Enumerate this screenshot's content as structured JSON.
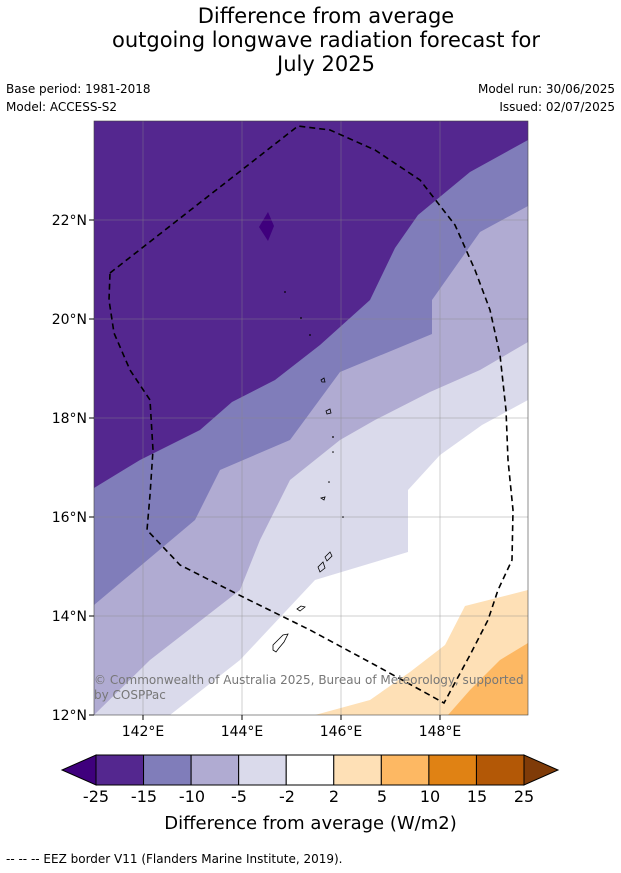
{
  "header": {
    "title_lines": [
      "Difference from average",
      "outgoing longwave radiation forecast for",
      "July 2025"
    ],
    "base_period": "Base period: 1981-2018",
    "model": "Model: ACCESS-S2",
    "model_run": "Model run: 30/06/2025",
    "issued": "Issued: 02/07/2025"
  },
  "map": {
    "lat_labels": [
      "22°N",
      "20°N",
      "18°N",
      "16°N",
      "14°N",
      "12°N"
    ],
    "lon_labels": [
      "142°E",
      "144°E",
      "146°E",
      "148°E"
    ],
    "copyright_lines": [
      "© Commonwealth of Australia 2025, Bureau of Meteorology, supported",
      "by COSPPac"
    ],
    "eez_border_style": "dashed black"
  },
  "colorbar": {
    "ticks": [
      "-25",
      "-15",
      "-10",
      "-5",
      "-2",
      "2",
      "5",
      "10",
      "15",
      "25"
    ],
    "colors": [
      "#3f007d",
      "#54278f",
      "#807dba",
      "#b0abd2",
      "#dadaeb",
      "#ffffff",
      "#fee0b6",
      "#fdb863",
      "#e08214",
      "#b35806",
      "#7f3b08"
    ],
    "title": "Difference from average (W/m2)"
  },
  "footer": {
    "legend": "--  --  -- EEZ border V11 (Flanders Marine Institute, 2019)."
  }
}
